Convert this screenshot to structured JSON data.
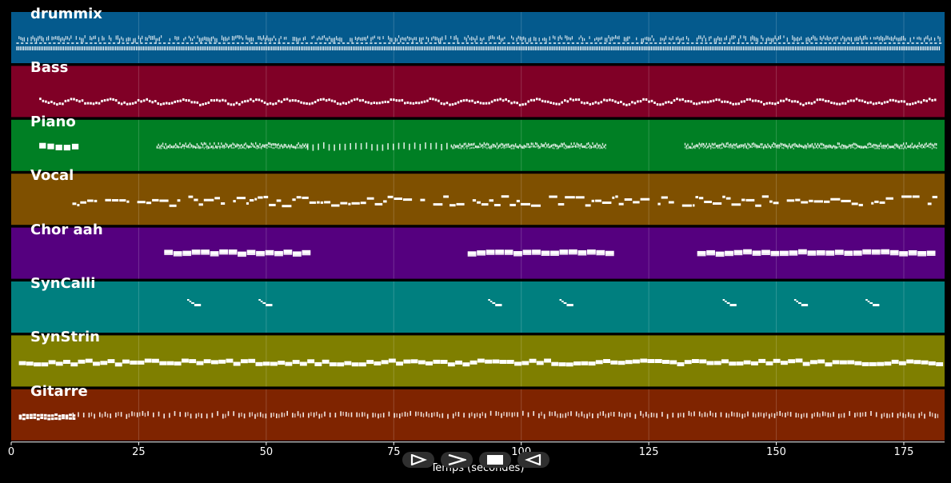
{
  "chart_data": {
    "type": "piano-roll",
    "xlabel": "Temps (secondes)",
    "xlim": [
      0,
      183
    ],
    "xticks": [
      0,
      25,
      50,
      75,
      100,
      125,
      150,
      175
    ],
    "tracks": [
      {
        "name": "drummix",
        "color": "#045a8d",
        "pattern": "drums",
        "segments": [
          [
            1,
            182
          ]
        ]
      },
      {
        "name": "Bass",
        "color": "#800026",
        "pattern": "wave",
        "segments": [
          [
            5.5,
            181.5
          ]
        ]
      },
      {
        "name": "Piano",
        "color": "#007f24",
        "pattern": "piano",
        "segments": [
          [
            5.5,
            12,
            "block"
          ],
          [
            28.5,
            116.5,
            "dense"
          ],
          [
            58,
            86,
            "sparse"
          ],
          [
            132,
            181.5,
            "dense"
          ]
        ]
      },
      {
        "name": "Vocal",
        "color": "#7f5000",
        "pattern": "vocal",
        "segments": [
          [
            12,
            181.5
          ]
        ]
      },
      {
        "name": "Chor aah",
        "color": "#55007f",
        "pattern": "chord",
        "segments": [
          [
            30,
            57
          ],
          [
            89.5,
            116.5
          ],
          [
            134.5,
            181
          ]
        ]
      },
      {
        "name": "SynCalli",
        "color": "#007f7f",
        "pattern": "motif",
        "segments": [
          [
            34.5
          ],
          [
            48.5
          ],
          [
            93.5
          ],
          [
            107.5
          ],
          [
            139.5
          ],
          [
            153.5
          ],
          [
            167.5
          ]
        ]
      },
      {
        "name": "SynStrin",
        "color": "#7f7f00",
        "pattern": "pad",
        "segments": [
          [
            1.5,
            181.5
          ]
        ]
      },
      {
        "name": "Gitarre",
        "color": "#7f2400",
        "pattern": "guitar",
        "segments": [
          [
            1.5,
            12,
            "block"
          ],
          [
            12,
            181.5,
            "strum"
          ]
        ]
      }
    ]
  },
  "transport": {
    "play_icon": "play-outline-icon",
    "forward_icon": "fast-forward-icon",
    "stop_icon": "stop-icon",
    "rewind_icon": "rewind-icon"
  },
  "colors": {
    "background": "#000000",
    "note": "#ffffff",
    "grid": "#ffffff"
  }
}
